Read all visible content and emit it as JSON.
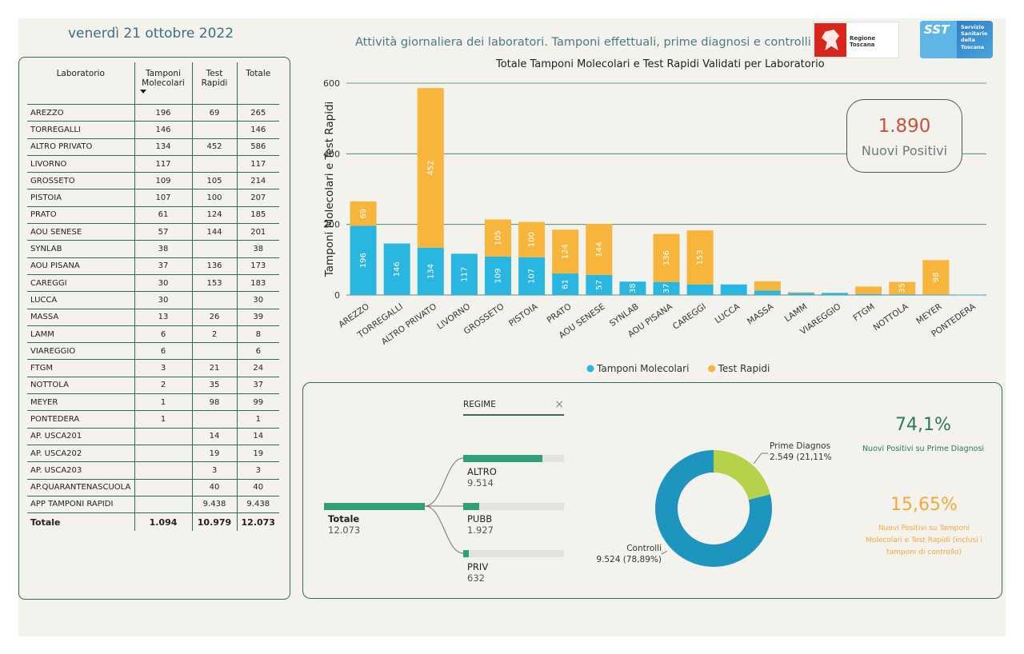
{
  "header": {
    "date": "venerdì 21 ottobre 2022",
    "title": "Attività giornaliera dei laboratori. Tamponi effettuali, prime diagnosi e controlli",
    "logo_regione": "Regione Toscana",
    "logo_sst_badge": "SST",
    "logo_sst_lines": [
      "Servizio",
      "Sanitario",
      "della",
      "Toscana"
    ]
  },
  "table": {
    "headers": [
      "Laboratorio",
      "Tamponi Molecolari",
      "Test Rapidi",
      "Totale"
    ],
    "rows": [
      [
        "AREZZO",
        "196",
        "69",
        "265"
      ],
      [
        "TORREGALLI",
        "146",
        "",
        "146"
      ],
      [
        "ALTRO PRIVATO",
        "134",
        "452",
        "586"
      ],
      [
        "LIVORNO",
        "117",
        "",
        "117"
      ],
      [
        "GROSSETO",
        "109",
        "105",
        "214"
      ],
      [
        "PISTOIA",
        "107",
        "100",
        "207"
      ],
      [
        "PRATO",
        "61",
        "124",
        "185"
      ],
      [
        "AOU SENESE",
        "57",
        "144",
        "201"
      ],
      [
        "SYNLAB",
        "38",
        "",
        "38"
      ],
      [
        "AOU PISANA",
        "37",
        "136",
        "173"
      ],
      [
        "CAREGGI",
        "30",
        "153",
        "183"
      ],
      [
        "LUCCA",
        "30",
        "",
        "30"
      ],
      [
        "MASSA",
        "13",
        "26",
        "39"
      ],
      [
        "LAMM",
        "6",
        "2",
        "8"
      ],
      [
        "VIAREGGIO",
        "6",
        "",
        "6"
      ],
      [
        "FTGM",
        "3",
        "21",
        "24"
      ],
      [
        "NOTTOLA",
        "2",
        "35",
        "37"
      ],
      [
        "MEYER",
        "1",
        "98",
        "99"
      ],
      [
        "PONTEDERA",
        "1",
        "",
        "1"
      ],
      [
        "AP. USCA201",
        "",
        "14",
        "14"
      ],
      [
        "AP. USCA202",
        "",
        "19",
        "19"
      ],
      [
        "AP. USCA203",
        "",
        "3",
        "3"
      ],
      [
        "AP.QUARANTENASCUOLA",
        "",
        "40",
        "40"
      ],
      [
        "APP TAMPONI RAPIDI",
        "",
        "9.438",
        "9.438"
      ]
    ],
    "total": [
      "Totale",
      "1.094",
      "10.979",
      "12.073"
    ]
  },
  "chart_data": {
    "type": "bar",
    "title": "Totale Tamponi Molecolari e Test Rapidi Validati per Laboratorio",
    "ylabel": "Tamponi Molecolari e Test Rapidi",
    "ylim": [
      0,
      600
    ],
    "yticks": [
      0,
      200,
      400,
      600
    ],
    "stacked": true,
    "categories": [
      "AREZZO",
      "TORREGALLI",
      "ALTRO PRIVATO",
      "LIVORNO",
      "GROSSETO",
      "PISTOIA",
      "PRATO",
      "AOU SENESE",
      "SYNLAB",
      "AOU PISANA",
      "CAREGGI",
      "LUCCA",
      "MASSA",
      "LAMM",
      "VIAREGGIO",
      "FTGM",
      "NOTTOLA",
      "MEYER",
      "PONTEDERA"
    ],
    "series": [
      {
        "name": "Tamponi Molecolari",
        "color": "#29b6e0",
        "values": [
          196,
          146,
          134,
          117,
          109,
          107,
          61,
          57,
          38,
          37,
          30,
          30,
          13,
          6,
          6,
          3,
          2,
          1,
          1
        ]
      },
      {
        "name": "Test Rapidi",
        "color": "#f7b53b",
        "values": [
          69,
          0,
          452,
          0,
          105,
          100,
          124,
          144,
          0,
          136,
          153,
          0,
          26,
          2,
          0,
          21,
          35,
          98,
          0
        ]
      }
    ],
    "legend_position": "bottom",
    "grid": true
  },
  "kpi": {
    "value": "1.890",
    "label": "Nuovi Positivi"
  },
  "regime": {
    "filter_label": "REGIME",
    "root": {
      "label": "Totale",
      "value": "12.073",
      "fraction": 1.0
    },
    "children": [
      {
        "label": "ALTRO",
        "value": "9.514",
        "fraction": 0.788
      },
      {
        "label": "PUBB",
        "value": "1.927",
        "fraction": 0.16
      },
      {
        "label": "PRIV",
        "value": "632",
        "fraction": 0.052
      }
    ]
  },
  "donut": {
    "slices": [
      {
        "label": "Prime Diagnosi",
        "value_text": "2.549 (21,11%)",
        "fraction": 0.2111,
        "color": "#b6d24a"
      },
      {
        "label": "Controlli",
        "value_text": "9.524 (78,89%)",
        "fraction": 0.7889,
        "color": "#1e95bf"
      }
    ]
  },
  "pct1": {
    "value": "74,1%",
    "label": "Nuovi Positivi su Prime Diagnosi",
    "color": "#2a7a5b"
  },
  "pct2": {
    "value": "15,65%",
    "label": "Nuovi Positivi su Tamponi Molecolari e Test Rapidi (inclusi i tamponi di controllo)",
    "color": "#f2a93b"
  }
}
